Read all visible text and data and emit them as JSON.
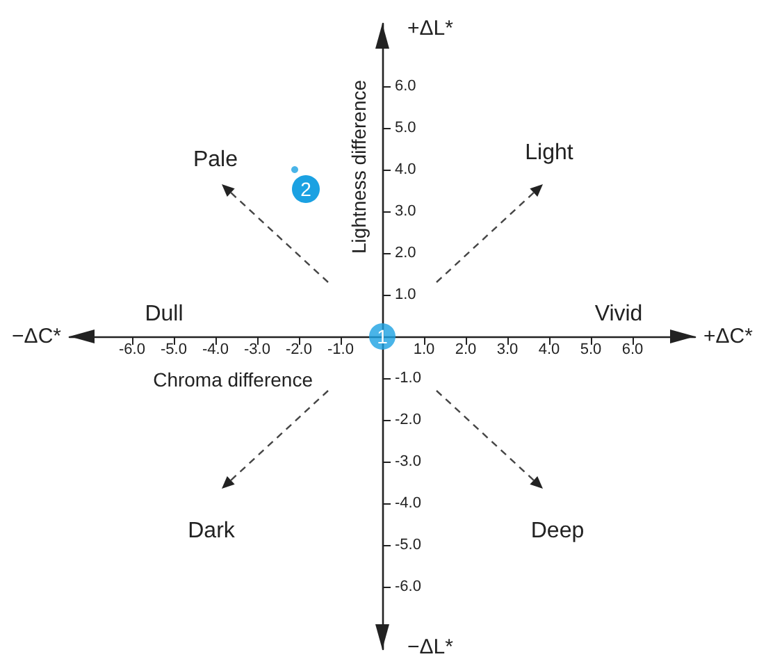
{
  "chart_data": {
    "type": "scatter",
    "xlabel": "Chroma difference",
    "ylabel": "Lightness difference",
    "series": [
      {
        "color": "#1ba1e2",
        "x": [
          0,
          -2.1
        ],
        "values": [
          0,
          4.0
        ]
      }
    ],
    "xlim": [
      -7.5,
      7.5
    ],
    "ylim": [
      -7.5,
      7.5
    ],
    "xticks": [
      {
        "value": -6,
        "label": "-6.0"
      },
      {
        "value": -5,
        "label": "-5.0"
      },
      {
        "value": -4,
        "label": "-4.0"
      },
      {
        "value": -3,
        "label": "-3.0"
      },
      {
        "value": -2,
        "label": "-2.0"
      },
      {
        "value": -1,
        "label": "-1.0"
      },
      {
        "value": 1,
        "label": "1.0"
      },
      {
        "value": 2,
        "label": "2.0"
      },
      {
        "value": 3,
        "label": "3.0"
      },
      {
        "value": 4,
        "label": "4.0"
      },
      {
        "value": 5,
        "label": "5.0"
      },
      {
        "value": 6,
        "label": "6.0"
      }
    ],
    "yticks": [
      {
        "value": -6,
        "label": "-6.0"
      },
      {
        "value": -5,
        "label": "-5.0"
      },
      {
        "value": -4,
        "label": "-4.0"
      },
      {
        "value": -3,
        "label": "-3.0"
      },
      {
        "value": -2,
        "label": "-2.0"
      },
      {
        "value": -1,
        "label": "-1.0"
      },
      {
        "value": 1,
        "label": "1.0"
      },
      {
        "value": 2,
        "label": "2.0"
      },
      {
        "value": 3,
        "label": "3.0"
      },
      {
        "value": 4,
        "label": "4.0"
      },
      {
        "value": 5,
        "label": "5.0"
      },
      {
        "value": 6,
        "label": "6.0"
      }
    ],
    "annotations": [
      "+ΔL*",
      "+ΔC*",
      "−ΔL*",
      "−ΔC*",
      "Pale",
      "Light",
      "Dull",
      "Vivid",
      "Dark",
      "Deep",
      {
        "text": "1",
        "x": 0,
        "y": 0
      },
      {
        "text": "2",
        "x": -2.1,
        "y": 4.0
      }
    ],
    "grid": false,
    "marker": "circle"
  }
}
